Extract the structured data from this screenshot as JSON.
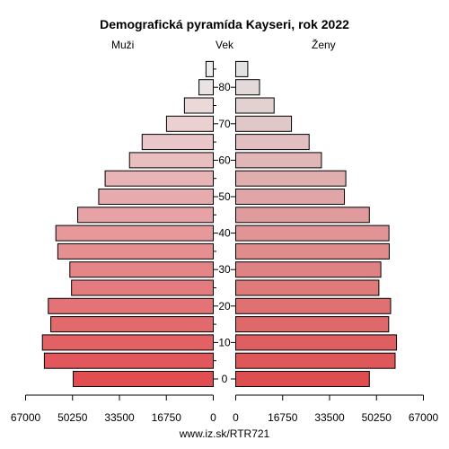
{
  "chart_data": {
    "type": "bar",
    "title": "Demografická pyramída Kayseri, rok 2022",
    "left_label": "Muži",
    "center_label": "Vek",
    "right_label": "Ženy",
    "footer": "www.iz.sk/RTR721",
    "xlim": [
      0,
      67000
    ],
    "x_ticks": [
      67000,
      50250,
      33500,
      16750,
      0
    ],
    "x_tick_labels_left": [
      "67000",
      "50250",
      "33500",
      "16750",
      "0"
    ],
    "x_tick_labels_right": [
      "0",
      "16750",
      "33500",
      "50250",
      "67000"
    ],
    "y_ticks": [
      0,
      10,
      20,
      30,
      40,
      50,
      60,
      70,
      80
    ],
    "age_groups": [
      "0-4",
      "5-9",
      "10-14",
      "15-19",
      "20-24",
      "25-29",
      "30-34",
      "35-39",
      "40-44",
      "45-49",
      "50-54",
      "55-59",
      "60-64",
      "65-69",
      "70-74",
      "75-79",
      "80-84",
      "85+"
    ],
    "series": [
      {
        "name": "Muži",
        "values": [
          50000,
          60300,
          61000,
          58000,
          58900,
          50600,
          51200,
          55500,
          56200,
          48400,
          40900,
          38600,
          29900,
          25400,
          16700,
          10300,
          5100,
          2600
        ]
      },
      {
        "name": "Ženy",
        "values": [
          47700,
          56900,
          57400,
          54600,
          55300,
          51100,
          51800,
          54800,
          54700,
          47700,
          38800,
          39300,
          30600,
          26200,
          19900,
          13700,
          8500,
          4300
        ]
      }
    ]
  }
}
